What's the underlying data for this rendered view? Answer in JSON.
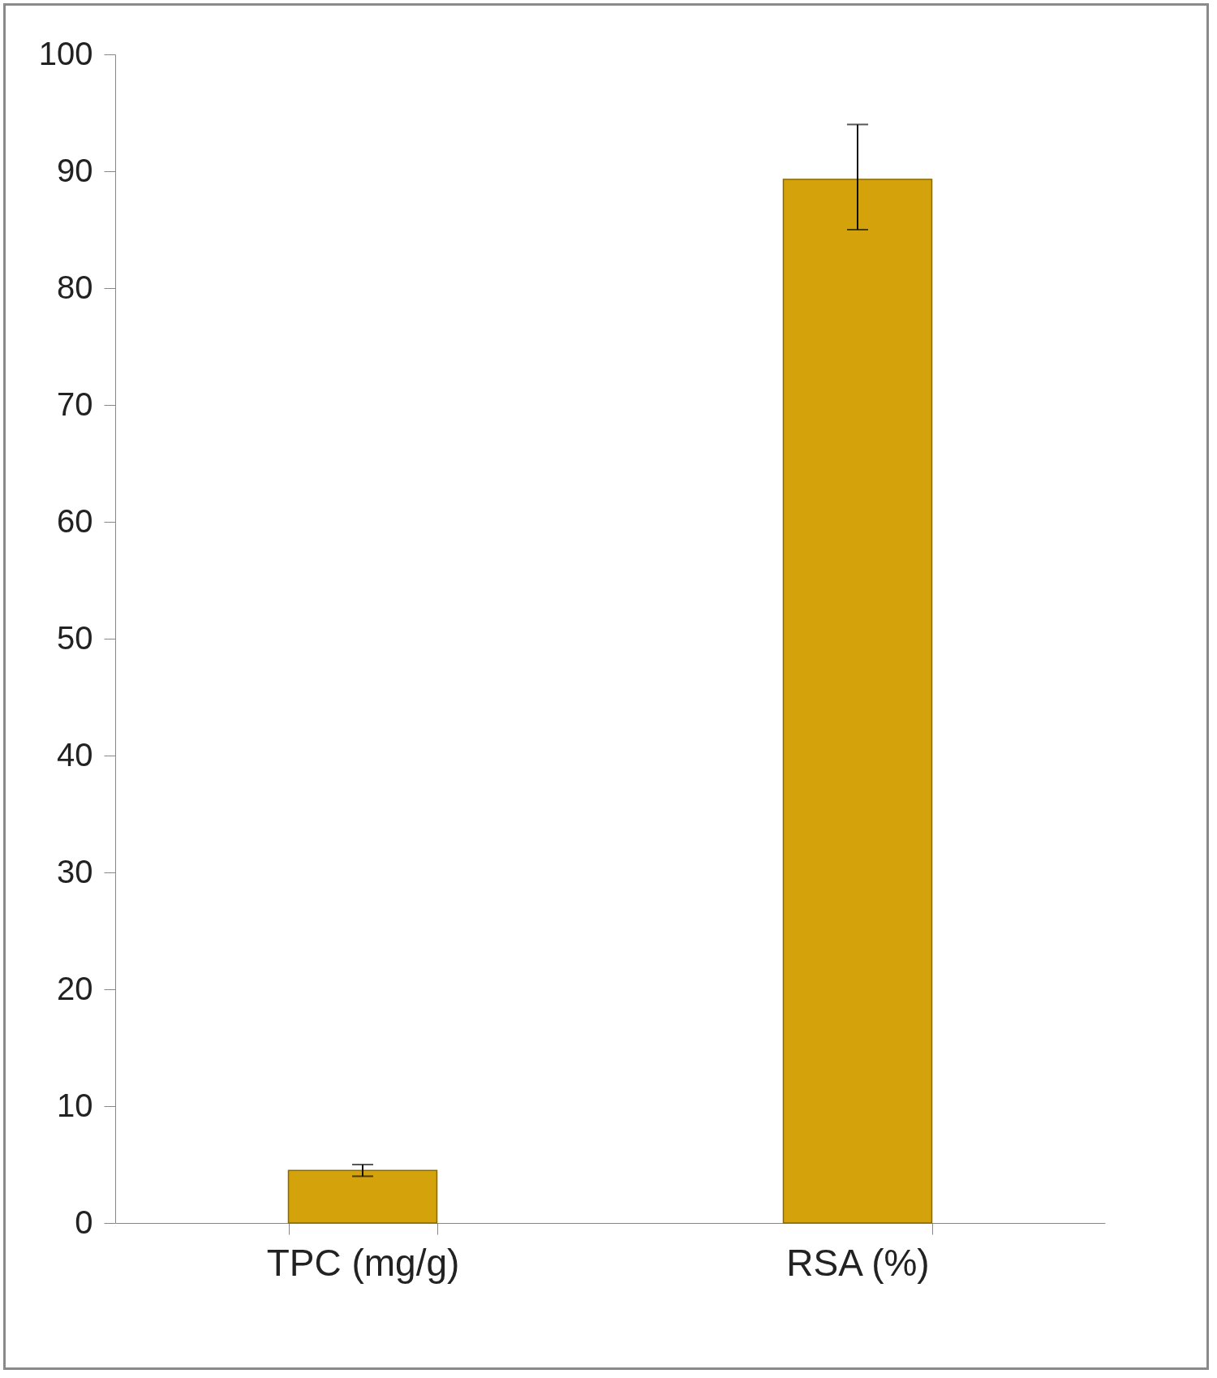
{
  "chart_data": {
    "type": "bar",
    "categories": [
      "TPC (mg/g)",
      "RSA (%)"
    ],
    "values": [
      4.5,
      89.3
    ],
    "errors": [
      0.5,
      [
        85,
        94
      ]
    ],
    "color": "#d4a20a",
    "ylim": [
      0,
      100
    ],
    "yticks": [
      0,
      10,
      20,
      30,
      40,
      50,
      60,
      70,
      80,
      90,
      100
    ],
    "grid": false
  }
}
